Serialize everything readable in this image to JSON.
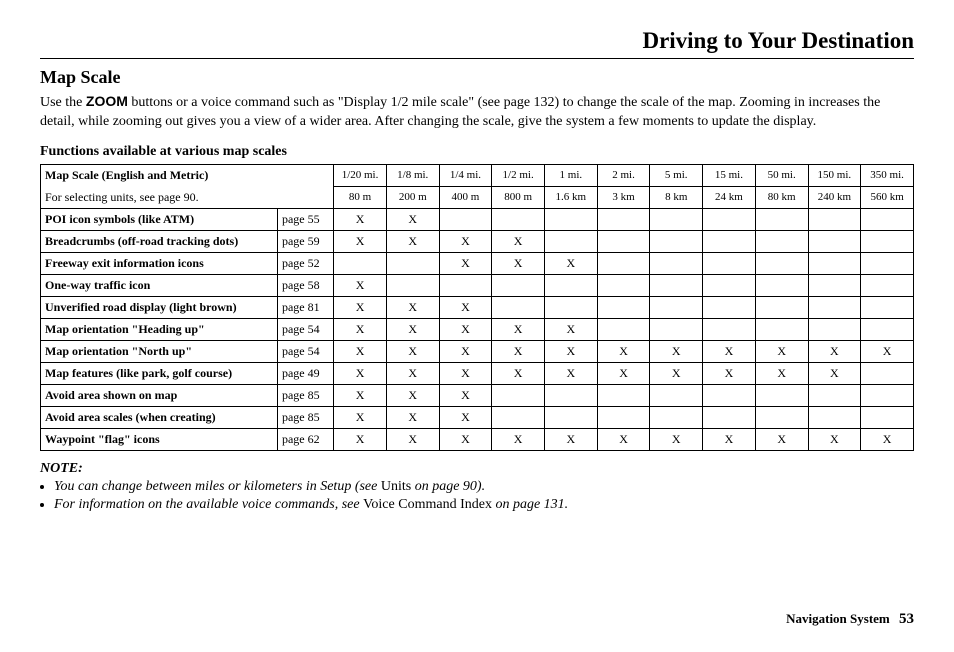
{
  "header": {
    "title": "Driving to Your Destination"
  },
  "section": {
    "heading": "Map Scale",
    "body_pre": "Use the ",
    "zoom_word": "ZOOM",
    "body_post": " buttons or a voice command such as \"Display 1/2 mile scale\" (see page 132) to change the scale of the map. Zooming in increases the detail, while zooming out gives you a view of a wider area. After changing the scale, give the system a few moments to update the display."
  },
  "table": {
    "caption": "Functions available at various map scales",
    "hdr_label": "Map Scale (English and Metric)",
    "hdr_sublabel": "For selecting units, see page 90.",
    "scales_en": [
      "1/20 mi.",
      "1/8 mi.",
      "1/4 mi.",
      "1/2 mi.",
      "1 mi.",
      "2 mi.",
      "5 mi.",
      "15 mi.",
      "50 mi.",
      "150 mi.",
      "350 mi."
    ],
    "scales_me": [
      "80 m",
      "200 m",
      "400 m",
      "800 m",
      "1.6 km",
      "3 km",
      "8 km",
      "24 km",
      "80 km",
      "240 km",
      "560 km"
    ],
    "rows": [
      {
        "label": "POI icon symbols (like ATM)",
        "page": "page 55",
        "marks": [
          "X",
          "X",
          "",
          "",
          "",
          "",
          "",
          "",
          "",
          "",
          ""
        ]
      },
      {
        "label": "Breadcrumbs (off-road tracking dots)",
        "page": "page 59",
        "marks": [
          "X",
          "X",
          "X",
          "X",
          "",
          "",
          "",
          "",
          "",
          "",
          ""
        ]
      },
      {
        "label": "Freeway exit information icons",
        "page": "page 52",
        "marks": [
          "",
          "",
          "X",
          "X",
          "X",
          "",
          "",
          "",
          "",
          "",
          ""
        ]
      },
      {
        "label": "One-way traffic icon",
        "page": "page 58",
        "marks": [
          "X",
          "",
          "",
          "",
          "",
          "",
          "",
          "",
          "",
          "",
          ""
        ]
      },
      {
        "label": "Unverified road display (light brown)",
        "page": "page 81",
        "marks": [
          "X",
          "X",
          "X",
          "",
          "",
          "",
          "",
          "",
          "",
          "",
          ""
        ]
      },
      {
        "label": "Map orientation \"Heading up\"",
        "page": "page 54",
        "marks": [
          "X",
          "X",
          "X",
          "X",
          "X",
          "",
          "",
          "",
          "",
          "",
          ""
        ]
      },
      {
        "label": "Map orientation \"North up\"",
        "page": "page 54",
        "marks": [
          "X",
          "X",
          "X",
          "X",
          "X",
          "X",
          "X",
          "X",
          "X",
          "X",
          "X"
        ]
      },
      {
        "label": "Map features (like park, golf course)",
        "page": "page 49",
        "marks": [
          "X",
          "X",
          "X",
          "X",
          "X",
          "X",
          "X",
          "X",
          "X",
          "X",
          ""
        ]
      },
      {
        "label": "Avoid area shown on map",
        "page": "page 85",
        "marks": [
          "X",
          "X",
          "X",
          "",
          "",
          "",
          "",
          "",
          "",
          "",
          ""
        ]
      },
      {
        "label": "Avoid area scales (when creating)",
        "page": "page 85",
        "marks": [
          "X",
          "X",
          "X",
          "",
          "",
          "",
          "",
          "",
          "",
          "",
          ""
        ]
      },
      {
        "label": "Waypoint \"flag\" icons",
        "page": "page 62",
        "marks": [
          "X",
          "X",
          "X",
          "X",
          "X",
          "X",
          "X",
          "X",
          "X",
          "X",
          "X"
        ]
      }
    ]
  },
  "notes": {
    "label": "NOTE:",
    "items": [
      {
        "it1": "You can change between miles or kilometers in Setup (see ",
        "rm": "Units",
        "it2": " on page 90)."
      },
      {
        "it1": "For information on the available voice commands, see ",
        "rm": "Voice Command Index",
        "it2": " on page 131."
      }
    ]
  },
  "footer": {
    "label": "Navigation System",
    "page": "53"
  }
}
